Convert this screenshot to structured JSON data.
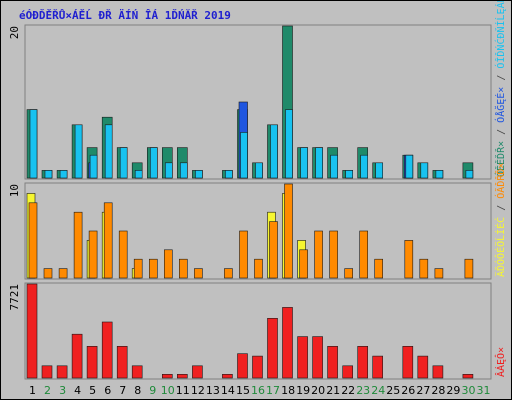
{
  "chart_data": [
    {
      "type": "bar",
      "title": "éÓĐĎĚŘŮ×ÁĚĹ ĐŘ ÄÍŃ ÎÁ 1ĎŃĂŘ 2019",
      "ylabel_top": "20",
      "categories": [
        "1",
        "2",
        "3",
        "4",
        "5",
        "6",
        "7",
        "8",
        "9",
        "10",
        "11",
        "12",
        "13",
        "14",
        "15",
        "16",
        "17",
        "18",
        "19",
        "20",
        "21",
        "22",
        "23",
        "24",
        "25",
        "26",
        "27",
        "28",
        "29",
        "30",
        "31"
      ],
      "weekend_days": [
        "2",
        "3",
        "9",
        "10",
        "16",
        "17",
        "23",
        "24",
        "30",
        "31"
      ],
      "legend": [
        {
          "text": "ÓĚĚĎŘ×",
          "color": "#1f8a6a"
        },
        {
          "text": " / ",
          "color": "#444444"
        },
        {
          "text": "ÓÅĞĘÉ×",
          "color": "#1f56e0"
        },
        {
          "text": " / ",
          "color": "#444444"
        },
        {
          "text": "ÓÎĎŃĆĐŇÍĹĘÁŘ",
          "color": "#18c2f0"
        }
      ],
      "series": [
        {
          "values": [
            9,
            1,
            1,
            7,
            4,
            8,
            4,
            2,
            4,
            4,
            4,
            1,
            0,
            1,
            9,
            2,
            7,
            20,
            4,
            4,
            4,
            1,
            4,
            2,
            0,
            3,
            2,
            1,
            0,
            2,
            0
          ]
        },
        {
          "values": [
            0,
            0,
            0,
            0,
            2,
            0,
            0,
            0,
            0,
            0,
            0,
            0,
            0,
            0,
            10,
            0,
            0,
            0,
            0,
            0,
            0,
            0,
            0,
            0,
            0,
            3,
            0,
            0,
            0,
            0,
            0
          ]
        },
        {
          "values": [
            9,
            1,
            1,
            7,
            3,
            7,
            4,
            1,
            4,
            2,
            2,
            1,
            0,
            1,
            6,
            2,
            7,
            9,
            4,
            4,
            3,
            1,
            3,
            2,
            0,
            3,
            2,
            1,
            0,
            1,
            0
          ]
        }
      ],
      "ylim": [
        0,
        20
      ]
    },
    {
      "type": "bar",
      "ylabel_top": "10",
      "legend": [
        {
          "text": "ÄĎÓÔÉÖĹÍÉĆ",
          "color": "#f6f630"
        },
        {
          "text": " / ",
          "color": "#444444"
        },
        {
          "text": "ÓĂĎŘĎ×",
          "color": "#ff8a00"
        }
      ],
      "series": [
        {
          "values": [
            9,
            0,
            0,
            0,
            4,
            7,
            0,
            1,
            0,
            0,
            0,
            0,
            0,
            0,
            0,
            0,
            7,
            9,
            4,
            0,
            0,
            0,
            0,
            0,
            0,
            0,
            0,
            0,
            0,
            0,
            0
          ]
        },
        {
          "values": [
            8,
            1,
            1,
            7,
            5,
            8,
            5,
            2,
            2,
            3,
            2,
            1,
            0,
            1,
            5,
            2,
            6,
            10,
            3,
            5,
            5,
            1,
            5,
            2,
            0,
            4,
            2,
            1,
            0,
            2,
            0
          ]
        }
      ],
      "ylim": [
        0,
        10
      ]
    },
    {
      "type": "bar",
      "ylabel_top": "7721",
      "legend": [
        {
          "text": "ÂÁĘÔ×",
          "color": "#f02020"
        }
      ],
      "series": [
        {
          "values": [
            7721,
            1000,
            1000,
            3600,
            2600,
            4600,
            2600,
            1000,
            0,
            300,
            300,
            1000,
            0,
            300,
            2000,
            1800,
            4900,
            5800,
            3400,
            3400,
            2600,
            1000,
            2600,
            1800,
            0,
            2600,
            1800,
            1000,
            0,
            300,
            0
          ]
        }
      ],
      "ylim": [
        0,
        7721
      ]
    }
  ],
  "colors": {
    "background": "#c0c0c0",
    "title": "#1f1fd0",
    "weekend_label": "#1f8a3a",
    "weekday_label": "#000000"
  }
}
